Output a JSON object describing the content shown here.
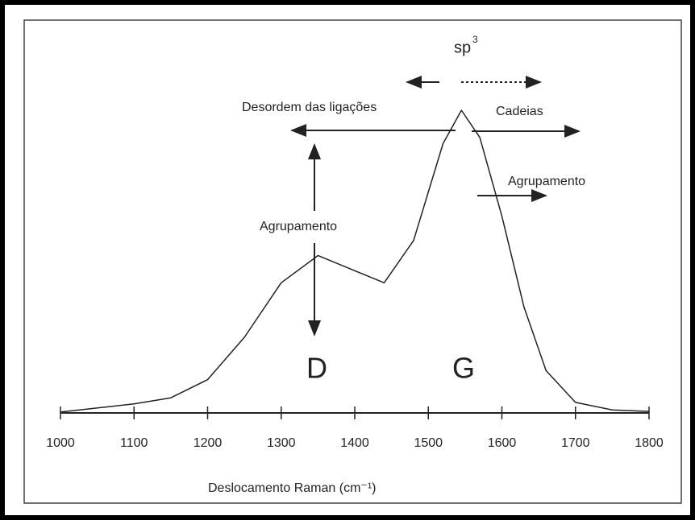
{
  "chart_data": {
    "type": "line",
    "x_label": "Deslocamento Raman  (cm⁻¹)",
    "x": [
      1000,
      1100,
      1150,
      1200,
      1250,
      1300,
      1350,
      1400,
      1440,
      1480,
      1500,
      1520,
      1545,
      1570,
      1600,
      1630,
      1660,
      1700,
      1750,
      1800
    ],
    "series": [
      {
        "color": "#222222",
        "values": [
          0.003,
          0.03,
          0.05,
          0.11,
          0.25,
          0.43,
          0.52,
          0.47,
          0.43,
          0.57,
          0.73,
          0.89,
          1.0,
          0.91,
          0.65,
          0.35,
          0.14,
          0.035,
          0.01,
          0.005
        ]
      }
    ],
    "xlim": [
      1000,
      1800
    ],
    "xticks": [
      1000,
      1100,
      1200,
      1300,
      1400,
      1500,
      1600,
      1700,
      1800
    ],
    "ylim": [
      0,
      1
    ],
    "annotations": {
      "sp": "sp",
      "sp_sup": "3",
      "desordem": "Desordem das ligações",
      "cadeias": "Cadeias",
      "agrupamento_right": "Agrupamento",
      "agrupamento_left": "Agrupamento",
      "peak_d": "D",
      "peak_g": "G"
    }
  }
}
